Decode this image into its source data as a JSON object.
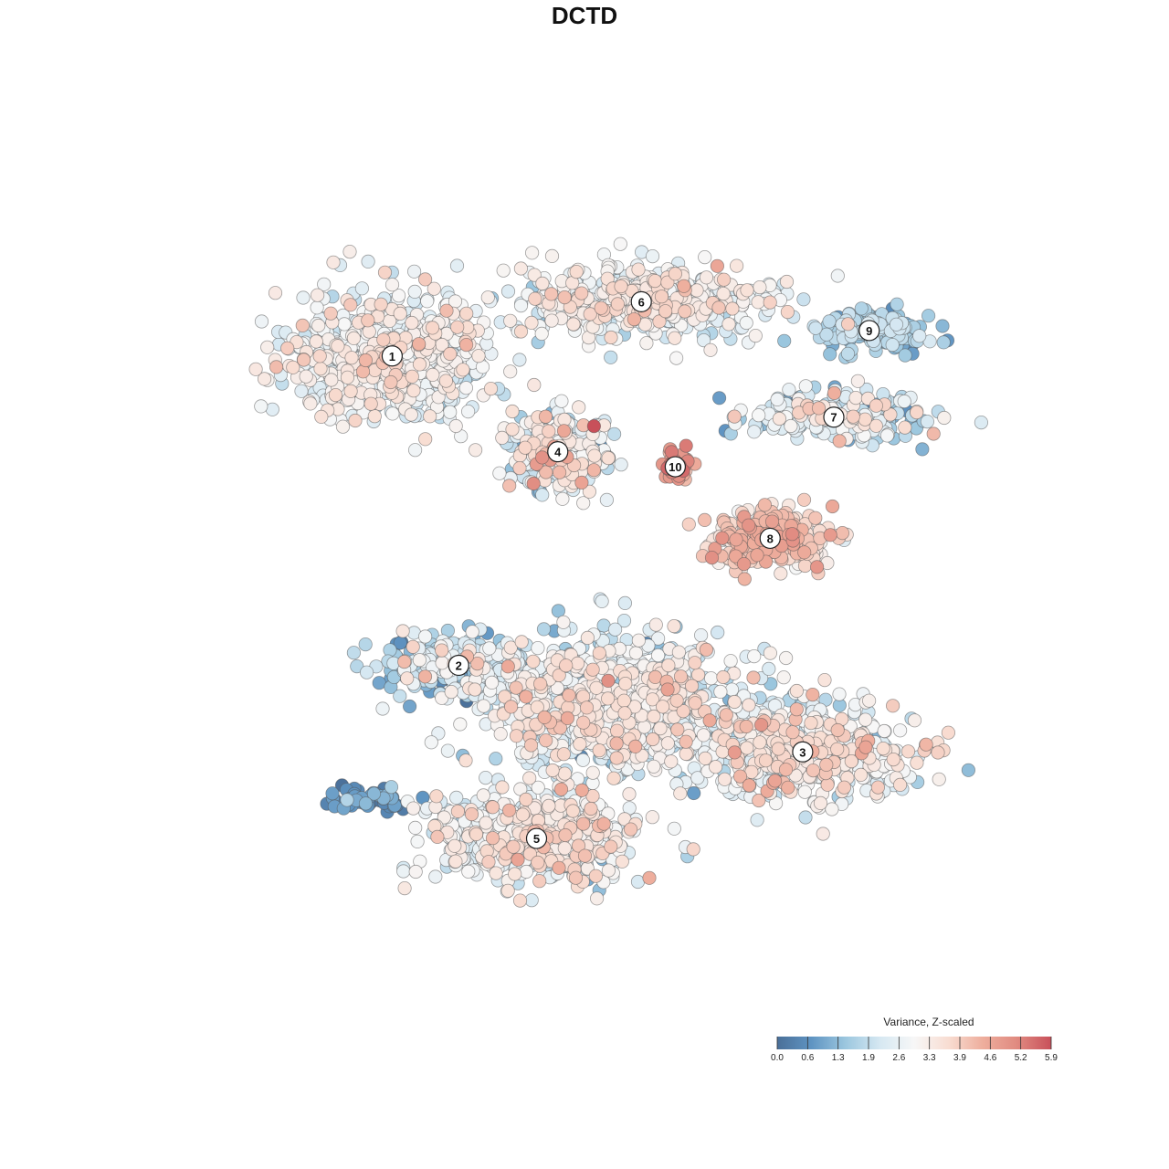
{
  "title": "DCTD",
  "chart_data": {
    "type": "scatter",
    "title": "DCTD",
    "xlabel": "",
    "ylabel": "",
    "grid": false,
    "legend": {
      "title": "Variance, Z-scaled",
      "placement": "bottom-right",
      "min": 0.0,
      "max": 5.9,
      "ticks": [
        "0.0",
        "0.6",
        "1.3",
        "1.9",
        "2.6",
        "3.3",
        "3.9",
        "4.6",
        "5.2",
        "5.9"
      ],
      "colors": [
        "#4a6f98",
        "#5f94c2",
        "#9cc7df",
        "#d6e8f2",
        "#f7f7f7",
        "#f8ddd2",
        "#eeae9d",
        "#e08a80",
        "#c8505a"
      ]
    },
    "clusters": [
      {
        "label": "1",
        "x": -15.2,
        "y": 15.8,
        "spread": [
          6.2,
          5.1
        ],
        "n": 720,
        "mean": 2.8,
        "sd": 0.55
      },
      {
        "label": "6",
        "x": 2.4,
        "y": 20.5,
        "spread": [
          8.0,
          2.9
        ],
        "n": 540,
        "mean": 2.9,
        "sd": 0.55
      },
      {
        "label": "9",
        "x": 18.5,
        "y": 18.0,
        "spread": [
          3.6,
          1.6
        ],
        "n": 150,
        "mean": 1.6,
        "sd": 0.45
      },
      {
        "label": "7",
        "x": 16.0,
        "y": 10.5,
        "spread": [
          6.0,
          2.0
        ],
        "n": 260,
        "mean": 2.2,
        "sd": 0.8
      },
      {
        "label": "4",
        "x": -3.5,
        "y": 7.5,
        "spread": [
          3.2,
          2.9
        ],
        "n": 300,
        "mean": 2.6,
        "sd": 0.95
      },
      {
        "label": "10",
        "x": 4.8,
        "y": 6.2,
        "spread": [
          1.1,
          1.1
        ],
        "n": 40,
        "mean": 4.8,
        "sd": 0.4
      },
      {
        "label": "8",
        "x": 11.5,
        "y": 0.0,
        "spread": [
          4.0,
          2.3
        ],
        "n": 240,
        "mean": 3.8,
        "sd": 0.55
      },
      {
        "label": "2",
        "x": -10.5,
        "y": -11.0,
        "spread": [
          4.8,
          2.4
        ],
        "n": 280,
        "mean": 2.0,
        "sd": 0.85
      },
      {
        "label": "3",
        "x": 13.8,
        "y": -18.5,
        "spread": [
          6.8,
          3.8
        ],
        "n": 500,
        "mean": 3.0,
        "sd": 0.7
      },
      {
        "label": "5",
        "x": -5.0,
        "y": -26.0,
        "spread": [
          6.5,
          3.3
        ],
        "n": 620,
        "mean": 2.8,
        "sd": 0.65
      },
      {
        "label": "",
        "x": 0.5,
        "y": -14.5,
        "spread": [
          8.5,
          5.5
        ],
        "n": 900,
        "mean": 2.6,
        "sd": 0.75
      },
      {
        "label": "",
        "x": -17.0,
        "y": -22.5,
        "spread": [
          2.4,
          1.0
        ],
        "n": 55,
        "mean": 0.6,
        "sd": 0.4
      }
    ],
    "xlim": [
      -30,
      30
    ],
    "ylim": [
      -40,
      32
    ]
  }
}
